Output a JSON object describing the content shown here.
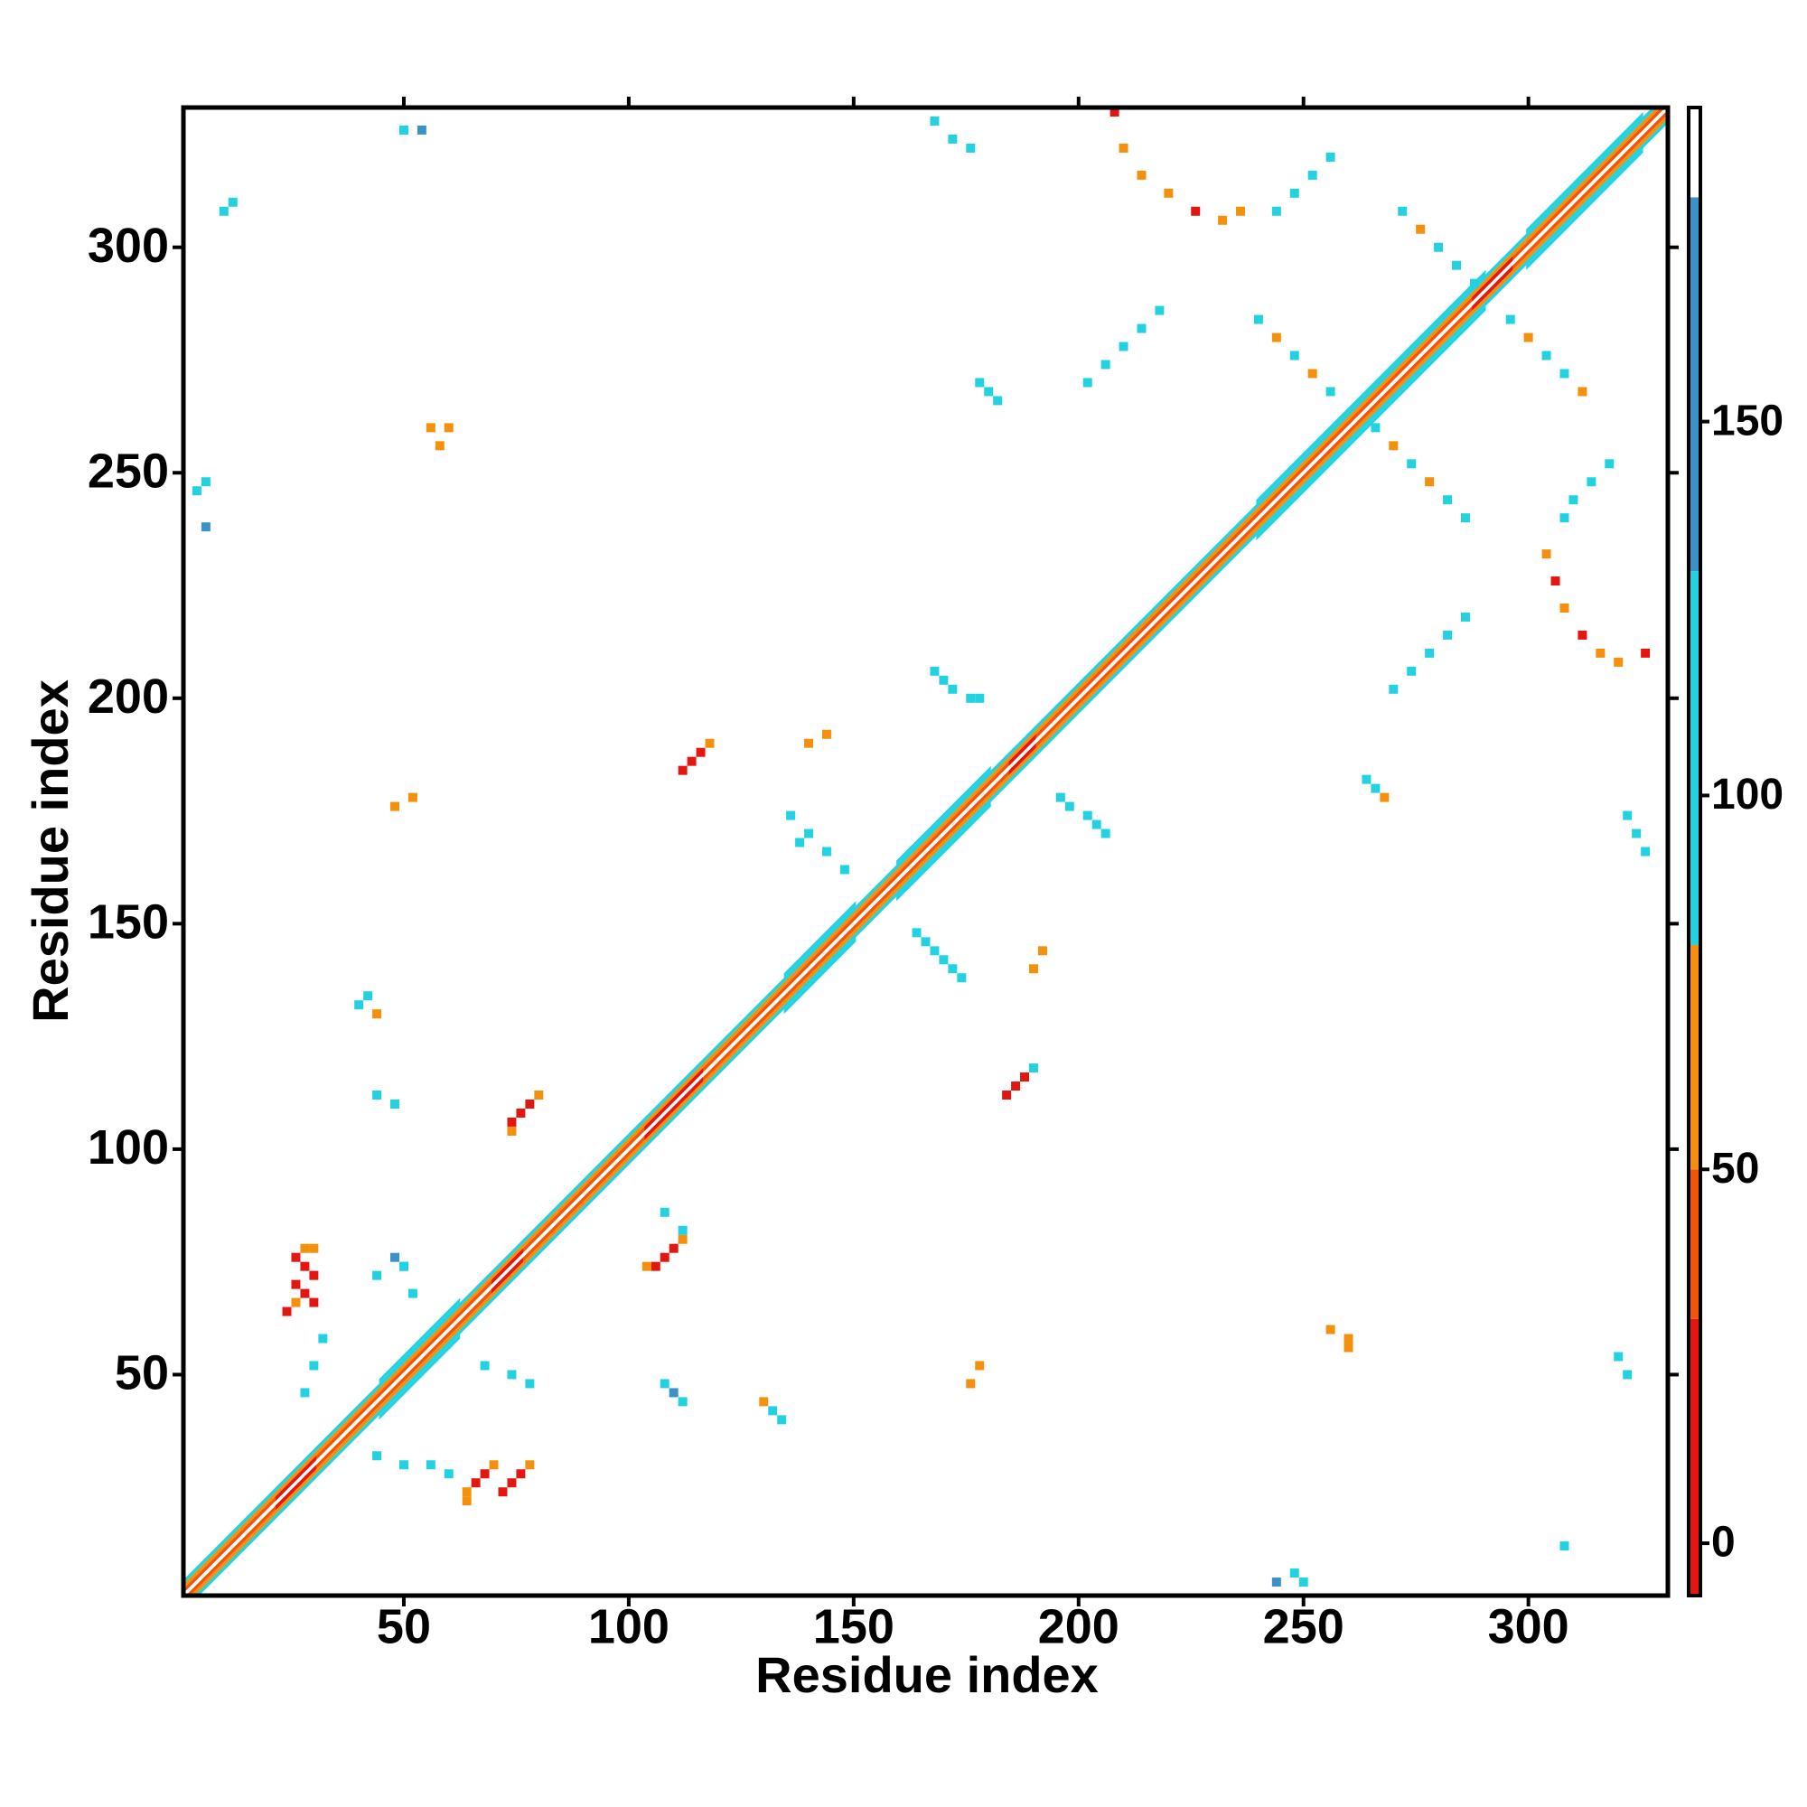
{
  "chart_data": {
    "type": "heatmap",
    "xlabel": "Residue index",
    "ylabel": "Residue index",
    "xlim": [
      1,
      331
    ],
    "ylim": [
      1,
      331
    ],
    "xticks": [
      50,
      100,
      150,
      200,
      250,
      300
    ],
    "yticks": [
      50,
      100,
      150,
      200,
      250,
      300
    ],
    "grid": false,
    "colorbar": {
      "bounds": [
        -7,
        30,
        50,
        80,
        130,
        180,
        192
      ],
      "colors": [
        "#e3170f",
        "#f0560a",
        "#f4900c",
        "#22d2e2",
        "#3a92c8",
        "#ffffff"
      ],
      "ticks": [
        0,
        50,
        100,
        150
      ]
    },
    "bands": [
      {
        "start": 1,
        "end": 331,
        "offset": 3,
        "value": 100
      },
      {
        "start": 1,
        "end": 331,
        "offset": -3,
        "value": 100
      },
      {
        "start": 1,
        "end": 331,
        "offset": 2,
        "value": 60
      },
      {
        "start": 1,
        "end": 331,
        "offset": -2,
        "value": 60
      },
      {
        "start": 1,
        "end": 331,
        "offset": 1,
        "value": 40
      },
      {
        "start": 1,
        "end": 331,
        "offset": -1,
        "value": 40
      },
      {
        "start": 1,
        "end": 331,
        "offset": 0,
        "value": 190
      },
      {
        "start": 22,
        "end": 30,
        "offset": 1,
        "value": 10
      },
      {
        "start": 22,
        "end": 30,
        "offset": -1,
        "value": 10
      },
      {
        "start": 70,
        "end": 76,
        "offset": 1,
        "value": 10
      },
      {
        "start": 70,
        "end": 76,
        "offset": -1,
        "value": 10
      },
      {
        "start": 104,
        "end": 116,
        "offset": 1,
        "value": 10
      },
      {
        "start": 104,
        "end": 116,
        "offset": -1,
        "value": 10
      },
      {
        "start": 185,
        "end": 190,
        "offset": 1,
        "value": 10
      },
      {
        "start": 185,
        "end": 190,
        "offset": -1,
        "value": 10
      },
      {
        "start": 288,
        "end": 296,
        "offset": 1,
        "value": 10
      },
      {
        "start": 288,
        "end": 296,
        "offset": -1,
        "value": 10
      },
      {
        "start": 45,
        "end": 62,
        "offset": 4,
        "value": 100
      },
      {
        "start": 45,
        "end": 62,
        "offset": -4,
        "value": 100
      },
      {
        "start": 135,
        "end": 150,
        "offset": 4,
        "value": 100
      },
      {
        "start": 135,
        "end": 150,
        "offset": -4,
        "value": 100
      },
      {
        "start": 160,
        "end": 180,
        "offset": 4,
        "value": 100
      },
      {
        "start": 160,
        "end": 180,
        "offset": -4,
        "value": 100
      },
      {
        "start": 240,
        "end": 290,
        "offset": 4,
        "value": 100
      },
      {
        "start": 240,
        "end": 290,
        "offset": -4,
        "value": 100
      },
      {
        "start": 300,
        "end": 325,
        "offset": 4,
        "value": 100
      },
      {
        "start": 300,
        "end": 325,
        "offset": -4,
        "value": 100
      }
    ],
    "cells": {
      "x": [
        26,
        28,
        30,
        26,
        28,
        30,
        24,
        26,
        28,
        30,
        64,
        66,
        68,
        70,
        74,
        76,
        78,
        72,
        64,
        74,
        76,
        78,
        80,
        74,
        106,
        108,
        110,
        112,
        104,
        112,
        114,
        116,
        118,
        184,
        186,
        188,
        190,
        132,
        134,
        130,
        40,
        42,
        44,
        136,
        140,
        144,
        148,
        138,
        164,
        166,
        168,
        170,
        172,
        174,
        168,
        170,
        172,
        176,
        178,
        196,
        198,
        202,
        204,
        206,
        264,
        266,
        268,
        178,
        180,
        182,
        270,
        274,
        278,
        282,
        286,
        202,
        206,
        210,
        214,
        218,
        304,
        306,
        308,
        312,
        316,
        320,
        326,
        208,
        210,
        214,
        220,
        226,
        232,
        236,
        308,
        310,
        314,
        318,
        244,
        248,
        252,
        256,
        266,
        270,
        274,
        278,
        282,
        286,
        240,
        244,
        248,
        252,
        256,
        272,
        276,
        280,
        284,
        288,
        296,
        300,
        304,
        308,
        312,
        322,
        324,
        326,
        168,
        172,
        176,
        320,
        322,
        50,
        54,
        308,
        10,
        12,
        244,
        248,
        250,
        4,
        6,
        6,
        256,
        260,
        260,
        56,
        58,
        60,
        176,
        178,
        48,
        52,
        190,
        192,
        140,
        144,
        44,
        48,
        50,
        110,
        112,
        108,
        44,
        48,
        108,
        112,
        44,
        50,
        56,
        60,
        28,
        30,
        32,
        68,
        74,
        78,
        52,
        50
      ],
      "y": [
        76,
        74,
        72,
        70,
        68,
        66,
        64,
        66,
        78,
        78,
        24,
        26,
        28,
        30,
        26,
        28,
        30,
        24,
        22,
        106,
        108,
        110,
        112,
        104,
        74,
        76,
        78,
        80,
        74,
        184,
        186,
        188,
        190,
        112,
        114,
        116,
        118,
        42,
        40,
        44,
        132,
        134,
        130,
        174,
        170,
        166,
        162,
        168,
        148,
        146,
        144,
        142,
        140,
        138,
        206,
        204,
        202,
        200,
        200,
        178,
        176,
        174,
        172,
        170,
        182,
        180,
        178,
        270,
        268,
        266,
        202,
        206,
        210,
        214,
        218,
        270,
        274,
        278,
        282,
        286,
        232,
        226,
        220,
        214,
        210,
        208,
        210,
        330,
        322,
        316,
        312,
        308,
        306,
        308,
        240,
        244,
        248,
        252,
        308,
        312,
        316,
        320,
        260,
        256,
        252,
        248,
        244,
        240,
        284,
        280,
        276,
        272,
        268,
        308,
        304,
        300,
        296,
        292,
        284,
        280,
        276,
        272,
        268,
        174,
        170,
        166,
        328,
        324,
        322,
        54,
        50,
        326,
        326,
        12,
        308,
        310,
        4,
        6,
        4,
        246,
        248,
        238,
        60,
        58,
        56,
        260,
        256,
        260,
        48,
        52,
        176,
        178,
        140,
        144,
        190,
        192,
        72,
        76,
        74,
        46,
        44,
        48,
        112,
        110,
        86,
        82,
        32,
        30,
        30,
        28,
        46,
        52,
        58,
        52,
        50,
        48,
        68,
        74
      ],
      "values": [
        10,
        10,
        10,
        10,
        10,
        10,
        10,
        60,
        60,
        60,
        60,
        10,
        10,
        60,
        10,
        10,
        60,
        10,
        60,
        10,
        10,
        10,
        60,
        60,
        10,
        10,
        10,
        60,
        60,
        10,
        10,
        10,
        60,
        10,
        10,
        10,
        100,
        100,
        100,
        60,
        100,
        100,
        60,
        100,
        100,
        100,
        100,
        100,
        100,
        100,
        100,
        100,
        100,
        100,
        100,
        100,
        100,
        100,
        100,
        100,
        100,
        100,
        100,
        100,
        100,
        100,
        60,
        100,
        100,
        100,
        100,
        100,
        100,
        100,
        100,
        100,
        100,
        100,
        100,
        100,
        60,
        10,
        60,
        10,
        60,
        60,
        10,
        10,
        60,
        60,
        60,
        10,
        60,
        60,
        100,
        100,
        100,
        100,
        100,
        100,
        100,
        100,
        100,
        60,
        100,
        60,
        100,
        100,
        100,
        60,
        100,
        60,
        100,
        100,
        60,
        100,
        100,
        100,
        100,
        60,
        100,
        100,
        60,
        100,
        100,
        100,
        100,
        100,
        100,
        100,
        100,
        100,
        150,
        100,
        100,
        100,
        150,
        100,
        100,
        100,
        100,
        150,
        60,
        60,
        60,
        60,
        60,
        60,
        60,
        60,
        60,
        60,
        60,
        60,
        60,
        60,
        100,
        150,
        100,
        150,
        100,
        100,
        100,
        100,
        100,
        100,
        100,
        100,
        100,
        100,
        100,
        100,
        100,
        100,
        100,
        100,
        100,
        100
      ]
    }
  }
}
